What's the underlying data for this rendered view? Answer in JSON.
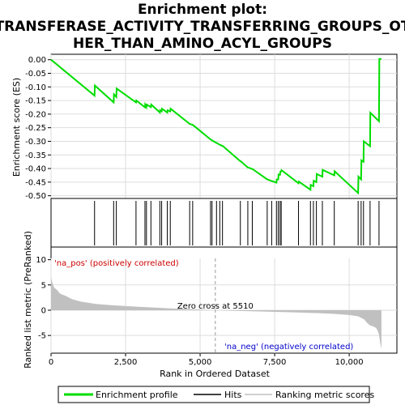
{
  "chart_data": {
    "type": "line",
    "title_lines": [
      "Enrichment plot:",
      "TRANSFERASE_ACTIVITY_TRANSFERRING_GROUPS_OT",
      "HER_THAN_AMINO_ACYL_GROUPS"
    ],
    "es_panel": {
      "ylabel": "Enrichment score (ES)",
      "ylim": [
        -0.51,
        0.02
      ],
      "yticks": [
        0.0,
        -0.05,
        -0.1,
        -0.15,
        -0.2,
        -0.25,
        -0.3,
        -0.35,
        -0.4,
        -0.45,
        -0.5
      ],
      "ytick_labels": [
        "0.00",
        "-0.05",
        "-0.10",
        "-0.15",
        "-0.20",
        "-0.25",
        "-0.30",
        "-0.35",
        "-0.40",
        "-0.45",
        "-0.50"
      ],
      "color": "#00dd00",
      "x": [
        0,
        1460,
        1470,
        2100,
        2110,
        2190,
        2200,
        2850,
        2860,
        3150,
        3160,
        3200,
        3210,
        3350,
        3360,
        3650,
        3660,
        3710,
        3720,
        3900,
        3910,
        4000,
        4010,
        4650,
        4660,
        4750,
        4760,
        5350,
        5360,
        5400,
        5410,
        5550,
        5560,
        5660,
        5670,
        5750,
        5760,
        6350,
        6360,
        6600,
        6610,
        6750,
        6760,
        7250,
        7260,
        7400,
        7410,
        7560,
        7570,
        7620,
        7630,
        7680,
        7690,
        7720,
        7730,
        8300,
        8310,
        8700,
        8710,
        8800,
        8810,
        8900,
        8910,
        9100,
        9110,
        9500,
        9510,
        10300,
        10310,
        10400,
        10410,
        10480,
        10490,
        10700,
        10710,
        11000,
        11010,
        11080
      ],
      "es": [
        0.0,
        -0.132,
        -0.095,
        -0.157,
        -0.127,
        -0.137,
        -0.106,
        -0.157,
        -0.15,
        -0.175,
        -0.165,
        -0.174,
        -0.165,
        -0.174,
        -0.165,
        -0.194,
        -0.186,
        -0.19,
        -0.18,
        -0.194,
        -0.186,
        -0.19,
        -0.18,
        -0.236,
        -0.236,
        -0.24,
        -0.24,
        -0.293,
        -0.293,
        -0.297,
        -0.297,
        -0.306,
        -0.306,
        -0.313,
        -0.313,
        -0.317,
        -0.317,
        -0.373,
        -0.373,
        -0.396,
        -0.396,
        -0.402,
        -0.402,
        -0.44,
        -0.44,
        -0.446,
        -0.446,
        -0.452,
        -0.44,
        -0.44,
        -0.422,
        -0.423,
        -0.412,
        -0.41,
        -0.406,
        -0.454,
        -0.448,
        -0.478,
        -0.46,
        -0.465,
        -0.445,
        -0.45,
        -0.42,
        -0.43,
        -0.405,
        -0.425,
        -0.41,
        -0.49,
        -0.43,
        -0.44,
        -0.37,
        -0.375,
        -0.3,
        -0.318,
        -0.195,
        -0.226,
        0.003,
        0.003
      ]
    },
    "hits": [
      1460,
      2100,
      2190,
      2850,
      3150,
      3200,
      3350,
      3650,
      3710,
      3900,
      4000,
      4650,
      4750,
      5350,
      5400,
      5550,
      5660,
      5750,
      6350,
      6600,
      6750,
      7250,
      7400,
      7560,
      7620,
      7680,
      7720,
      8300,
      8700,
      8800,
      8900,
      9100,
      9500,
      10300,
      10400,
      10480,
      10700,
      11000
    ],
    "metric_panel": {
      "ylabel": "Ranked list metric (PreRanked)",
      "xlabel": "Rank in Ordered Dataset",
      "ylim": [
        -8.5,
        12.5
      ],
      "yticks": [
        10,
        5,
        0,
        -5
      ],
      "ytick_labels": [
        "10",
        "5",
        "0",
        "-5"
      ],
      "xlim": [
        0,
        11600
      ],
      "xticks": [
        0,
        2500,
        5000,
        7500,
        10000
      ],
      "xtick_labels": [
        "0",
        "2,500",
        "5,000",
        "7,500",
        "10,000"
      ],
      "fill_color": "#c0c0c0",
      "profile_x": [
        0,
        40,
        100,
        200,
        300,
        500,
        700,
        1000,
        1500,
        2000,
        3000,
        4000,
        5000,
        5510,
        6000,
        7000,
        8000,
        9000,
        9500,
        10000,
        10300,
        10500,
        10600,
        10700,
        10800,
        10900,
        10950,
        11000,
        11040,
        11080
      ],
      "profile_y": [
        6.5,
        5.5,
        4.5,
        4.0,
        3.3,
        2.8,
        2.2,
        1.7,
        1.25,
        1.0,
        0.65,
        0.35,
        0.12,
        0.0,
        -0.1,
        -0.25,
        -0.4,
        -0.58,
        -0.72,
        -0.95,
        -1.2,
        -1.8,
        -2.5,
        -3.0,
        -3.2,
        -3.5,
        -4.0,
        -4.8,
        -6.5,
        -7.6
      ],
      "zero_cross_label": "Zero cross at 5510",
      "zero_cross_rank": 5510,
      "pos_label": "'na_pos' (positively correlated)",
      "neg_label": "'na_neg' (negatively correlated)",
      "pos_color": "#cc0000",
      "neg_color": "#0000cc"
    },
    "xmax_data": 11080,
    "legend": [
      {
        "label": "Enrichment profile",
        "color": "#00dd00"
      },
      {
        "label": "Hits",
        "color": "#000000"
      },
      {
        "label": "Ranking metric scores",
        "color": "#c0c0c0"
      }
    ]
  }
}
